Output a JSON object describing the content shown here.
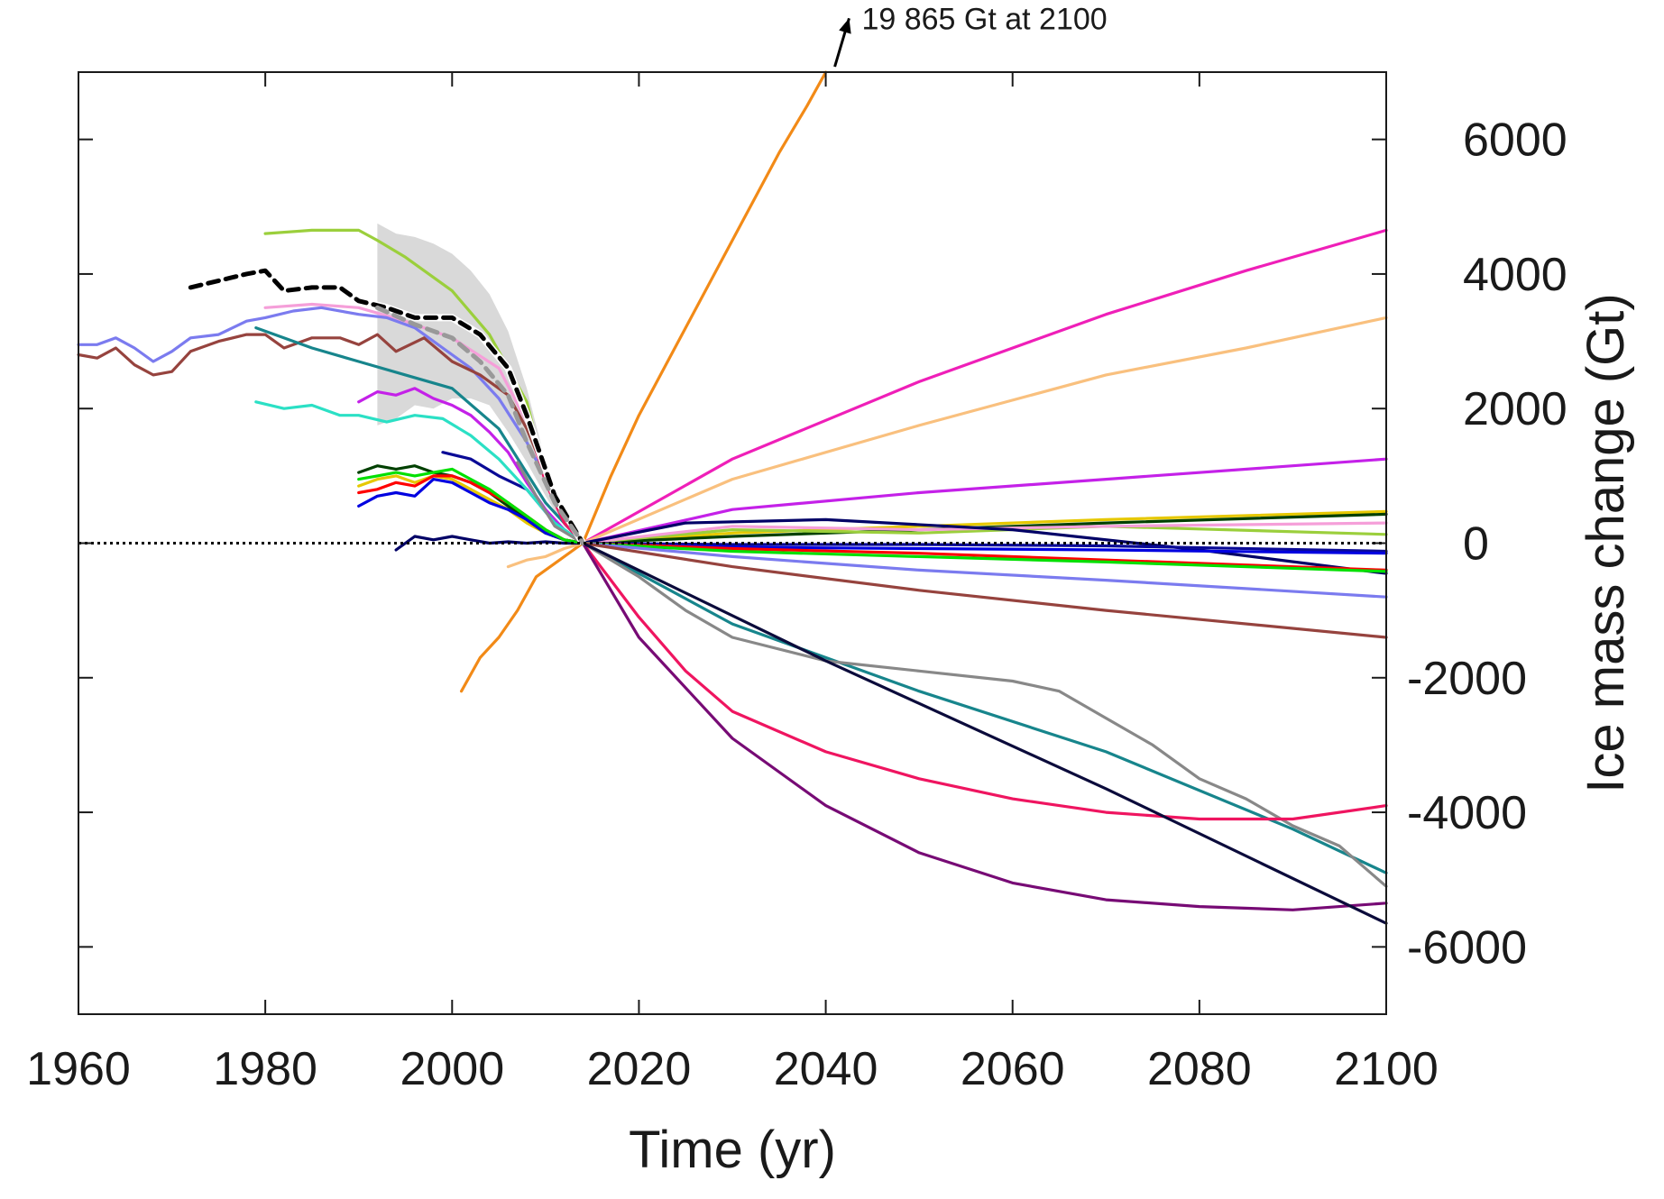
{
  "chart_data": {
    "type": "line",
    "title": "",
    "xlabel": "Time (yr)",
    "ylabel": "Ice mass change (Gt)",
    "xlim": [
      1960,
      2100
    ],
    "ylim": [
      -7000,
      7000
    ],
    "xticks": [
      1960,
      1980,
      2000,
      2020,
      2040,
      2060,
      2080,
      2100
    ],
    "yticks": [
      -6000,
      -4000,
      -2000,
      0,
      2000,
      4000,
      6000
    ],
    "y_axis_side": "right",
    "grid": false,
    "legend": "none",
    "reference_line": {
      "y": 0,
      "style": "dotted",
      "color": "#000000"
    },
    "annotation": {
      "text": "19 865 Gt at 2100",
      "arrow_from": [
        2040,
        7000
      ],
      "arrow_to": [
        2042.5,
        7800
      ]
    },
    "uncertainty_band": {
      "color": "#d9d9d9",
      "x": [
        1992,
        1994,
        1996,
        1998,
        2000,
        2002,
        2004,
        2006,
        2008,
        2010,
        2012,
        2014,
        2012,
        2010,
        2008,
        2006,
        2004,
        2002,
        2000,
        1998,
        1996,
        1994,
        1992
      ],
      "y": [
        4750,
        4600,
        4550,
        4450,
        4300,
        4050,
        3700,
        3150,
        2300,
        1200,
        500,
        0,
        250,
        700,
        1200,
        1650,
        2050,
        2150,
        2150,
        2000,
        2050,
        1850,
        1750
      ]
    },
    "series": [
      {
        "color": "#f28a17",
        "x": [
          2001,
          2003,
          2005,
          2007,
          2009,
          2011,
          2014,
          2017,
          2020,
          2025,
          2030,
          2035,
          2038,
          2040
        ],
        "y": [
          -2200,
          -1700,
          -1400,
          -1000,
          -500,
          -300,
          0,
          1000,
          1900,
          3200,
          4500,
          5800,
          6500,
          7000
        ]
      },
      {
        "color": "#ef1fb8",
        "x": [
          2014,
          2030,
          2050,
          2070,
          2085,
          2100
        ],
        "y": [
          0,
          1250,
          2400,
          3400,
          4050,
          4650
        ]
      },
      {
        "color": "#f9c07e",
        "x": [
          2006,
          2008,
          2010,
          2012,
          2014,
          2030,
          2050,
          2070,
          2085,
          2100
        ],
        "y": [
          -350,
          -250,
          -200,
          -80,
          0,
          950,
          1750,
          2500,
          2900,
          3350
        ]
      },
      {
        "color": "#c421e8",
        "x": [
          1990,
          1992,
          1994,
          1996,
          1998,
          2000,
          2002,
          2004,
          2006,
          2008,
          2010,
          2012,
          2014,
          2030,
          2050,
          2070,
          2100
        ],
        "y": [
          2100,
          2250,
          2200,
          2300,
          2150,
          2050,
          1900,
          1650,
          1350,
          900,
          500,
          200,
          0,
          500,
          750,
          950,
          1250
        ]
      },
      {
        "color": "#e6c800",
        "x": [
          1990,
          1992,
          1994,
          1996,
          1998,
          2000,
          2002,
          2004,
          2006,
          2008,
          2010,
          2012,
          2014,
          2030,
          2050,
          2070,
          2100
        ],
        "y": [
          850,
          950,
          1000,
          900,
          1000,
          950,
          800,
          650,
          500,
          300,
          150,
          50,
          0,
          150,
          250,
          350,
          470
        ]
      },
      {
        "color": "#004000",
        "x": [
          1990,
          1992,
          1994,
          1996,
          1998,
          2000,
          2002,
          2004,
          2006,
          2008,
          2010,
          2012,
          2014,
          2030,
          2050,
          2070,
          2100
        ],
        "y": [
          1050,
          1150,
          1100,
          1150,
          1050,
          1000,
          900,
          750,
          550,
          350,
          150,
          50,
          0,
          100,
          200,
          300,
          430
        ]
      },
      {
        "color": "#9bcf3c",
        "x": [
          1980,
          1985,
          1990,
          1992,
          1995,
          2000,
          2004,
          2008,
          2010,
          2012,
          2014,
          2030,
          2050,
          2070,
          2100
        ],
        "y": [
          4600,
          4650,
          4650,
          4500,
          4250,
          3750,
          3100,
          2100,
          1000,
          300,
          0,
          200,
          150,
          250,
          130
        ]
      },
      {
        "color": "#f59fd9",
        "x": [
          1980,
          1985,
          1990,
          1995,
          2000,
          2005,
          2008,
          2010,
          2012,
          2014,
          2030,
          2050,
          2070,
          2100
        ],
        "y": [
          3500,
          3550,
          3500,
          3300,
          3050,
          2600,
          1800,
          900,
          300,
          0,
          250,
          200,
          250,
          300
        ]
      },
      {
        "color": "#000066",
        "x": [
          1994,
          1996,
          1998,
          2000,
          2002,
          2004,
          2006,
          2008,
          2010,
          2012,
          2014,
          2025,
          2040,
          2060,
          2080,
          2100
        ],
        "y": [
          -100,
          100,
          50,
          100,
          50,
          0,
          20,
          0,
          20,
          0,
          0,
          300,
          350,
          200,
          -100,
          -450
        ]
      },
      {
        "color": "#0a0a96",
        "x": [
          1999,
          2002,
          2005,
          2008,
          2011,
          2014,
          2030,
          2050,
          2070,
          2100
        ],
        "y": [
          1350,
          1250,
          1000,
          800,
          300,
          0,
          -20,
          -20,
          -40,
          -120
        ]
      },
      {
        "color": "#0000e0",
        "x": [
          1990,
          1992,
          1994,
          1996,
          1998,
          2000,
          2002,
          2004,
          2006,
          2008,
          2010,
          2012,
          2014,
          2030,
          2050,
          2070,
          2100
        ],
        "y": [
          550,
          700,
          750,
          700,
          950,
          900,
          750,
          600,
          500,
          350,
          150,
          50,
          0,
          -60,
          -80,
          -100,
          -150
        ]
      },
      {
        "color": "#ff0000",
        "x": [
          1990,
          1992,
          1994,
          1996,
          1998,
          2000,
          2002,
          2004,
          2006,
          2008,
          2010,
          2012,
          2014,
          2030,
          2050,
          2070,
          2100
        ],
        "y": [
          750,
          800,
          900,
          850,
          1000,
          1000,
          900,
          750,
          600,
          400,
          200,
          50,
          0,
          -80,
          -150,
          -250,
          -400
        ]
      },
      {
        "color": "#00e000",
        "x": [
          1990,
          1992,
          1994,
          1996,
          1998,
          2000,
          2002,
          2004,
          2006,
          2008,
          2010,
          2012,
          2014,
          2030,
          2050,
          2070,
          2100
        ],
        "y": [
          950,
          1000,
          1050,
          1000,
          1050,
          1100,
          950,
          800,
          600,
          400,
          200,
          50,
          0,
          -120,
          -200,
          -280,
          -420
        ]
      },
      {
        "color": "#7b7bef",
        "x": [
          1960,
          1962,
          1964,
          1966,
          1968,
          1970,
          1972,
          1975,
          1978,
          1980,
          1983,
          1986,
          1990,
          1993,
          1996,
          1999,
          2002,
          2005,
          2008,
          2011,
          2014,
          2030,
          2050,
          2070,
          2100
        ],
        "y": [
          2950,
          2950,
          3050,
          2900,
          2700,
          2850,
          3050,
          3100,
          3300,
          3350,
          3450,
          3500,
          3400,
          3350,
          3200,
          2900,
          2600,
          2150,
          1500,
          700,
          0,
          -200,
          -400,
          -550,
          -800
        ]
      },
      {
        "color": "#96433e",
        "x": [
          1960,
          1962,
          1964,
          1966,
          1968,
          1970,
          1972,
          1975,
          1978,
          1980,
          1982,
          1985,
          1988,
          1990,
          1992,
          1994,
          1997,
          2000,
          2003,
          2006,
          2008,
          2011,
          2014,
          2030,
          2050,
          2070,
          2100
        ],
        "y": [
          2800,
          2750,
          2900,
          2650,
          2500,
          2550,
          2850,
          3000,
          3100,
          3100,
          2900,
          3050,
          3050,
          2950,
          3100,
          2850,
          3050,
          2700,
          2500,
          2200,
          1700,
          700,
          0,
          -350,
          -700,
          -1000,
          -1400
        ]
      },
      {
        "color": "#17858c",
        "x": [
          1979,
          1985,
          1990,
          1995,
          2000,
          2005,
          2010,
          2014,
          2030,
          2050,
          2070,
          2090,
          2100
        ],
        "y": [
          3200,
          2900,
          2700,
          2500,
          2300,
          1700,
          600,
          0,
          -1200,
          -2200,
          -3100,
          -4250,
          -4900
        ]
      },
      {
        "color": "#2be0c5",
        "x": [
          1979,
          1982,
          1985,
          1988,
          1990,
          1993,
          1996,
          1999,
          2002,
          2005,
          2008,
          2011,
          2014
        ],
        "y": [
          2100,
          2000,
          2050,
          1900,
          1900,
          1800,
          1900,
          1850,
          1600,
          1250,
          800,
          300,
          0
        ]
      },
      {
        "color": "#888888",
        "x": [
          2007,
          2009,
          2011,
          2014,
          2020,
          2025,
          2030,
          2040,
          2050,
          2060,
          2065,
          2070,
          2075,
          2080,
          2085,
          2090,
          2095,
          2100
        ],
        "y": [
          1200,
          700,
          250,
          0,
          -500,
          -1000,
          -1400,
          -1750,
          -1900,
          -2050,
          -2200,
          -2600,
          -3000,
          -3500,
          -3800,
          -4200,
          -4500,
          -5100
        ]
      },
      {
        "color": "#ef1560",
        "x": [
          2008,
          2010,
          2012,
          2014,
          2020,
          2025,
          2030,
          2040,
          2050,
          2060,
          2070,
          2080,
          2090,
          2100
        ],
        "y": [
          1900,
          900,
          300,
          0,
          -1100,
          -1900,
          -2500,
          -3100,
          -3500,
          -3800,
          -4000,
          -4100,
          -4100,
          -3900
        ]
      },
      {
        "color": "#770b75",
        "x": [
          2014,
          2020,
          2030,
          2040,
          2050,
          2060,
          2070,
          2080,
          2090,
          2100
        ],
        "y": [
          0,
          -1400,
          -2900,
          -3900,
          -4600,
          -5050,
          -5300,
          -5400,
          -5450,
          -5350
        ]
      },
      {
        "color": "#0b0b3b",
        "x": [
          2014,
          2040,
          2070,
          2100
        ],
        "y": [
          0,
          -1750,
          -3650,
          -5650
        ]
      },
      {
        "color": "#000000",
        "dashed": true,
        "x": [
          1972,
          1975,
          1978,
          1980,
          1982,
          1985,
          1988,
          1990,
          1993,
          1996,
          2000,
          2003,
          2006,
          2008,
          2011,
          2014
        ],
        "y": [
          3800,
          3900,
          4000,
          4050,
          3750,
          3800,
          3800,
          3600,
          3500,
          3350,
          3350,
          3100,
          2600,
          1900,
          700,
          0
        ]
      },
      {
        "color": "#999999",
        "dashed": true,
        "x": [
          1992,
          1996,
          2000,
          2003,
          2006,
          2008,
          2011,
          2014
        ],
        "y": [
          3500,
          3250,
          3050,
          2700,
          2200,
          1500,
          600,
          0
        ]
      }
    ]
  }
}
